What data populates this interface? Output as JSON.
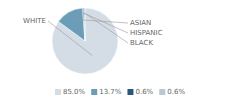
{
  "chart_data": {
    "type": "pie",
    "categories": [
      "WHITE",
      "ASIAN",
      "HISPANIC",
      "BLACK"
    ],
    "values": [
      85.0,
      13.7,
      0.6,
      0.6
    ],
    "value_labels": [
      "85.0%",
      "13.7%",
      "0.6%",
      "0.6%"
    ],
    "colors": [
      "#d4dde6",
      "#6b9db8",
      "#2a5878",
      "#b8c8d4"
    ],
    "legend": "bottom"
  }
}
